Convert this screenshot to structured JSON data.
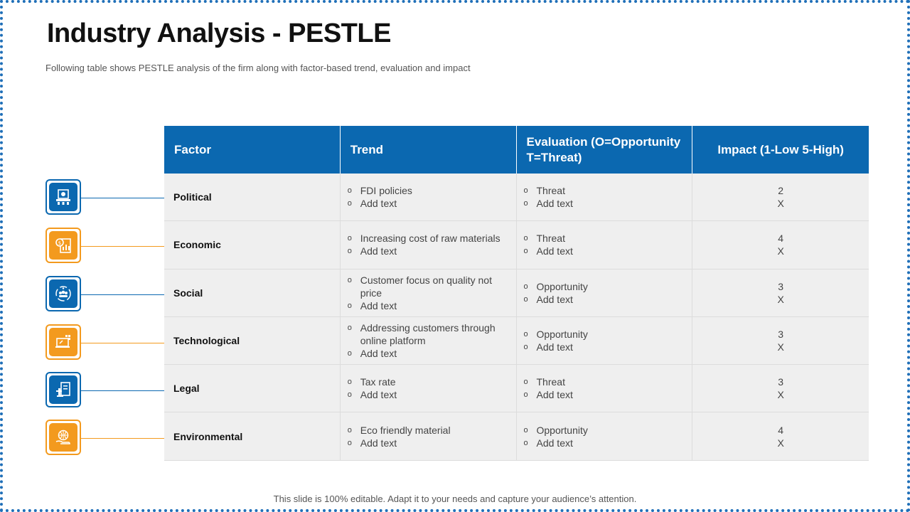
{
  "slide": {
    "title": "Industry Analysis - PESTLE",
    "subtitle": "Following table shows PESTLE  analysis of the firm along with factor-based trend, evaluation and impact",
    "footer": "This slide is 100% editable. Adapt it to your needs and capture your audience’s attention."
  },
  "table": {
    "headers": [
      "Factor",
      "Trend",
      "Evaluation (O=Opportunity T=Threat)",
      "Impact (1-Low 5-High)"
    ],
    "rows": [
      {
        "factor": "Political",
        "trend": [
          "FDI policies",
          "Add text"
        ],
        "evaluation": [
          "Threat",
          "Add text"
        ],
        "impact": [
          "2",
          "X"
        ]
      },
      {
        "factor": "Economic",
        "trend": [
          "Increasing cost of raw materials",
          "Add text"
        ],
        "evaluation": [
          "Threat",
          "Add text"
        ],
        "impact": [
          "4",
          "X"
        ]
      },
      {
        "factor": "Social",
        "trend": [
          "Customer focus on quality not price",
          "Add text"
        ],
        "evaluation": [
          "Opportunity",
          "Add text"
        ],
        "impact": [
          "3",
          "X"
        ]
      },
      {
        "factor": "Technological",
        "trend": [
          "Addressing customers through online platform",
          "Add text"
        ],
        "evaluation": [
          "Opportunity",
          "Add text"
        ],
        "impact": [
          "3",
          "X"
        ]
      },
      {
        "factor": "Legal",
        "trend": [
          "Tax rate",
          "Add text"
        ],
        "evaluation": [
          "Threat",
          "Add text"
        ],
        "impact": [
          "3",
          "X"
        ]
      },
      {
        "factor": "Environmental",
        "trend": [
          "Eco friendly material",
          "Add text"
        ],
        "evaluation": [
          "Opportunity",
          "Add text"
        ],
        "impact": [
          "4",
          "X"
        ]
      }
    ]
  },
  "bullet_glyph": "o",
  "icons": [
    {
      "name": "political-icon",
      "color": "blue"
    },
    {
      "name": "economic-icon",
      "color": "orange"
    },
    {
      "name": "social-icon",
      "color": "blue"
    },
    {
      "name": "technological-icon",
      "color": "orange"
    },
    {
      "name": "legal-icon",
      "color": "blue"
    },
    {
      "name": "environmental-icon",
      "color": "orange"
    }
  ],
  "colors": {
    "accent_blue": "#0b68b0",
    "accent_orange": "#f39a1e",
    "row_bg": "#efefef"
  }
}
